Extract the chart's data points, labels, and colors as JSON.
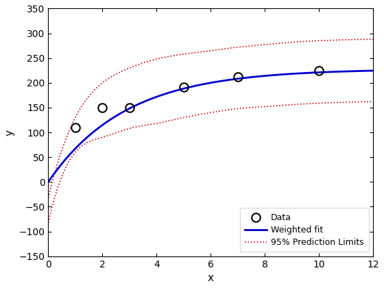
{
  "data_x": [
    1,
    2,
    3,
    5,
    7,
    10
  ],
  "data_y": [
    110,
    150,
    150,
    192,
    212,
    224
  ],
  "x_min": 0,
  "x_max": 12,
  "y_min": -150,
  "y_max": 350,
  "xlabel": "x",
  "ylabel": "y",
  "fit_color": "#0000cd",
  "pred_color": "#cc0000",
  "data_color": "black",
  "background_color": "#ffffff",
  "legend_labels": [
    "Data",
    "Weighted fit",
    "95% Prediction Limits"
  ],
  "xticks": [
    0,
    2,
    4,
    6,
    8,
    10,
    12
  ],
  "yticks": [
    -150,
    -100,
    -50,
    0,
    50,
    100,
    150,
    200,
    250,
    300,
    350
  ],
  "fit_a": 228.0,
  "fit_b": 0.35,
  "pred_upper_pts": [
    [
      0.01,
      -30
    ],
    [
      1,
      130
    ],
    [
      2,
      200
    ],
    [
      3,
      230
    ],
    [
      4,
      248
    ],
    [
      5,
      258
    ],
    [
      6,
      265
    ],
    [
      7,
      272
    ],
    [
      8,
      277
    ],
    [
      9,
      282
    ],
    [
      10,
      285
    ],
    [
      11,
      287
    ],
    [
      12,
      288
    ]
  ],
  "pred_lower_pts": [
    [
      0.01,
      -80
    ],
    [
      1,
      60
    ],
    [
      2,
      90
    ],
    [
      3,
      108
    ],
    [
      4,
      118
    ],
    [
      5,
      130
    ],
    [
      6,
      140
    ],
    [
      7,
      148
    ],
    [
      8,
      152
    ],
    [
      9,
      156
    ],
    [
      10,
      159
    ],
    [
      11,
      161
    ],
    [
      12,
      162
    ]
  ]
}
